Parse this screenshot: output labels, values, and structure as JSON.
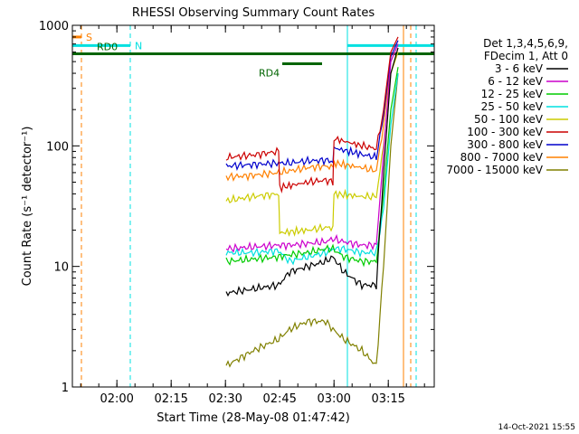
{
  "chart_data": {
    "type": "line",
    "title": "RHESSI Observing Summary Count Rates",
    "xlabel": "Start Time (28-May-08 01:47:42)",
    "ylabel": "Count Rate (s⁻¹ detector⁻¹)",
    "yscale": "log",
    "ylim": [
      1,
      1000
    ],
    "x_unit": "minutes after 01:47:42",
    "xlim": [
      0,
      100
    ],
    "y_ticks": [
      {
        "label": "1",
        "value": 1
      },
      {
        "label": "10",
        "value": 10
      },
      {
        "label": "100",
        "value": 100
      },
      {
        "label": "1000",
        "value": 1000
      }
    ],
    "x_ticks": [
      {
        "label": "02:00",
        "value": 12.3
      },
      {
        "label": "02:15",
        "value": 27.3
      },
      {
        "label": "02:30",
        "value": 42.3
      },
      {
        "label": "02:45",
        "value": 57.3
      },
      {
        "label": "03:00",
        "value": 72.3
      },
      {
        "label": "03:15",
        "value": 87.3
      }
    ],
    "legend_header": [
      "Det 1,3,4,5,6,9,",
      "FDecim 1, Att 0"
    ],
    "series": [
      {
        "name": "3 - 6 keV",
        "color": "#000000",
        "x": [
          42.5,
          50,
          57,
          60,
          65,
          70,
          72,
          75,
          80,
          84,
          86,
          88,
          90
        ],
        "y": [
          6,
          6.5,
          7,
          9,
          10,
          11,
          12,
          9,
          7,
          7,
          60,
          400,
          650
        ]
      },
      {
        "name": "6 - 12 keV",
        "color": "#cc00cc",
        "x": [
          42.5,
          50,
          57,
          60,
          65,
          70,
          72,
          75,
          80,
          84,
          86,
          88,
          90
        ],
        "y": [
          14,
          14.5,
          15,
          15,
          15.5,
          16,
          17,
          16,
          15,
          15,
          90,
          500,
          700
        ]
      },
      {
        "name": "12 - 25 keV",
        "color": "#00cc00",
        "x": [
          42.5,
          50,
          57,
          60,
          65,
          70,
          72,
          75,
          80,
          84,
          86,
          88,
          90
        ],
        "y": [
          11,
          11.5,
          12,
          12.5,
          13,
          14,
          14,
          12,
          11,
          11,
          40,
          200,
          450
        ]
      },
      {
        "name": "25 - 50 keV",
        "color": "#00e0e0",
        "x": [
          42.5,
          50,
          57,
          60,
          65,
          70,
          72,
          75,
          80,
          84,
          86,
          88,
          90
        ],
        "y": [
          13,
          13,
          13.5,
          11,
          12,
          13,
          14,
          14,
          13,
          13,
          30,
          150,
          400
        ]
      },
      {
        "name": "50 - 100 keV",
        "color": "#cccc00",
        "x": [
          42.5,
          50,
          57,
          57.3,
          65,
          70,
          72,
          72.3,
          80,
          84,
          86,
          88,
          90
        ],
        "y": [
          35,
          38,
          40,
          19,
          20,
          21,
          21,
          40,
          38,
          38,
          100,
          400,
          600
        ]
      },
      {
        "name": "100 - 300 keV",
        "color": "#cc0000",
        "x": [
          42.5,
          50,
          57,
          57.3,
          65,
          70,
          72,
          72.3,
          80,
          84,
          86,
          88,
          90
        ],
        "y": [
          80,
          84,
          90,
          45,
          50,
          52,
          50,
          115,
          100,
          95,
          200,
          600,
          800
        ]
      },
      {
        "name": "300 - 800 keV",
        "color": "#0000cc",
        "x": [
          42.5,
          50,
          57,
          60,
          65,
          70,
          72,
          72.3,
          80,
          84,
          86,
          88,
          90
        ],
        "y": [
          68,
          70,
          72,
          72,
          75,
          76,
          74,
          96,
          85,
          80,
          180,
          550,
          750
        ]
      },
      {
        "name": "800 - 7000 keV",
        "color": "#ff8000",
        "x": [
          42.5,
          50,
          57,
          60,
          65,
          70,
          72,
          72.3,
          80,
          84,
          86,
          88,
          90
        ],
        "y": [
          55,
          57,
          60,
          62,
          66,
          68,
          66,
          72,
          66,
          62,
          150,
          500,
          700
        ]
      },
      {
        "name": "7000 - 15000 keV",
        "color": "#808000",
        "x": [
          42.5,
          50,
          57,
          60,
          65,
          70,
          72,
          75,
          80,
          84,
          86,
          88,
          90
        ],
        "y": [
          1.5,
          2,
          2.5,
          3,
          3.5,
          3.5,
          3,
          2.5,
          2,
          1.5,
          10,
          100,
          400
        ]
      }
    ],
    "attenuator_bars": [
      {
        "label": "RD0",
        "color": "#006400",
        "x_start": 0,
        "x_end": 100,
        "level": 580
      },
      {
        "label": "RD4",
        "color": "#006400",
        "x_start": 58,
        "x_end": 69,
        "level": 480
      }
    ],
    "state_bars": [
      {
        "label": "N",
        "color": "#00e0e0",
        "x_start": 0,
        "x_end": 16,
        "level": 680
      },
      {
        "label": "",
        "color": "#00e0e0",
        "x_start": 76,
        "x_end": 100,
        "level": 680
      },
      {
        "label": "S",
        "color": "#ff8000",
        "x_start": 0,
        "x_end": 2.5,
        "level": 800
      }
    ],
    "vlines": [
      {
        "x": 2.5,
        "color": "#ff8000",
        "style": "dashed"
      },
      {
        "x": 16,
        "color": "#00e0e0",
        "style": "dashed"
      },
      {
        "x": 76,
        "color": "#00e0e0",
        "style": "solid"
      },
      {
        "x": 91.5,
        "color": "#ff8000",
        "style": "solid"
      },
      {
        "x": 93.5,
        "color": "#ff8000",
        "style": "dashed"
      },
      {
        "x": 95,
        "color": "#00e0e0",
        "style": "dashed"
      }
    ],
    "grid": false,
    "legend_position": "right"
  },
  "footer": {
    "timestamp": "14-Oct-2021 15:55"
  }
}
